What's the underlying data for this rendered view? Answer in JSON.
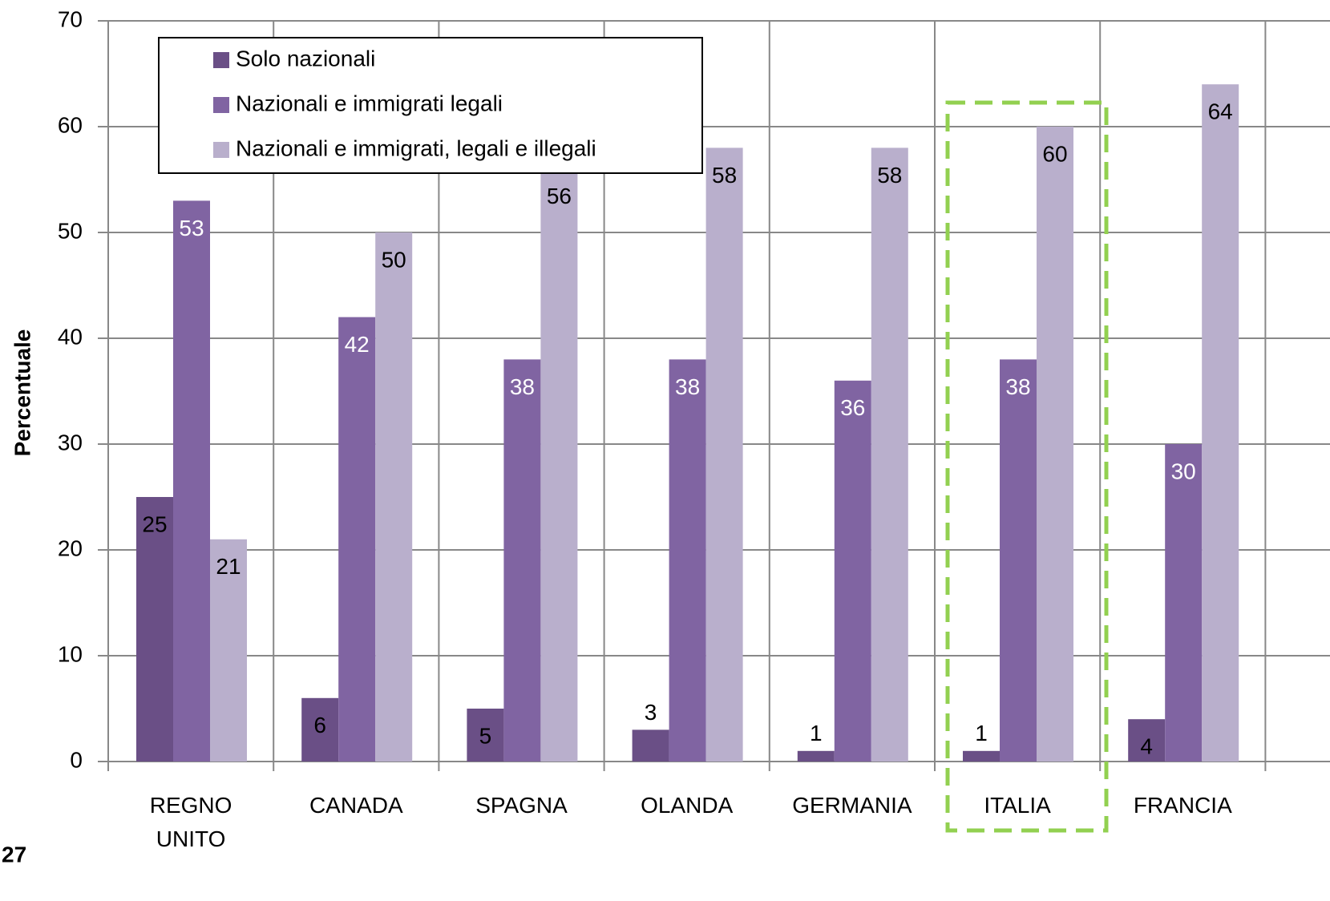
{
  "chart_data": {
    "type": "bar",
    "y_axis_label": "Percentuale",
    "page_number": "27",
    "categories": [
      "REGNO UNITO",
      "CANADA",
      "SPAGNA",
      "OLANDA",
      "GERMANIA",
      "ITALIA",
      "FRANCIA"
    ],
    "series": [
      {
        "name": "Solo nazionali",
        "color": "#6a4f86",
        "values": [
          25,
          6,
          5,
          3,
          1,
          1,
          4
        ]
      },
      {
        "name": "Nazionali e immigrati legali",
        "color": "#8064a2",
        "values": [
          53,
          42,
          38,
          38,
          36,
          38,
          30
        ]
      },
      {
        "name": "Nazionali e immigrati, legali e illegali",
        "color": "#b9afcc",
        "values": [
          21,
          50,
          56,
          58,
          58,
          60,
          64
        ]
      }
    ],
    "ylim": [
      0,
      70
    ],
    "yticks": [
      0,
      10,
      20,
      30,
      40,
      50,
      60,
      70
    ],
    "grid": true,
    "legend": "top-left"
  }
}
